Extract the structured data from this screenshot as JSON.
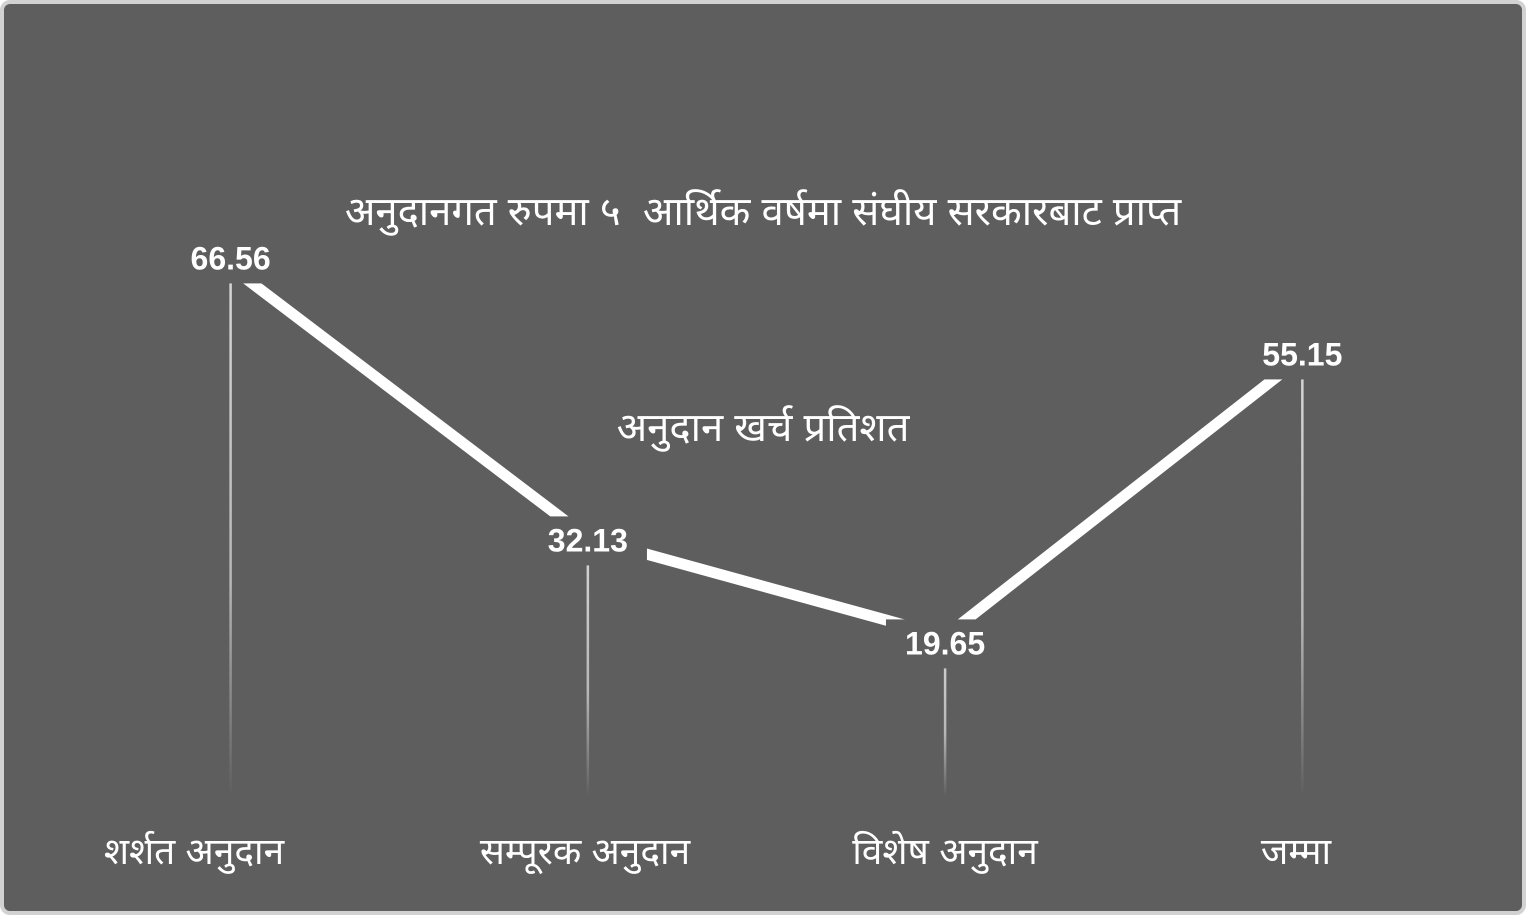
{
  "chart_data": {
    "type": "line",
    "title": "अनुदानगत रुपमा ५ आर्थिक वर्षमा संघीय सरकारबाट प्राप्त अनुदान खर्च प्रतिशत",
    "title_lines": [
      "अनुदानगत रुपमा ५  आर्थिक वर्षमा संघीय सरकारबाट प्राप्त",
      "अनुदान खर्च प्रतिशत"
    ],
    "categories": [
      "शर्शत अनुदान",
      "सम्पूरक अनुदान",
      "विशेष अनुदान",
      "जम्मा"
    ],
    "values": [
      66.56,
      32.13,
      19.65,
      55.15
    ],
    "value_labels": [
      "66.56",
      "32.13",
      "19.65",
      "55.15"
    ],
    "xlabel": "",
    "ylabel": "",
    "ylim": [
      0,
      76
    ],
    "axes_visible": false,
    "gridlines": false,
    "legend": false,
    "markers": false,
    "drop_lines": true,
    "colors": {
      "background": "#5e5e5e",
      "border": "#d2d2d2",
      "series_line": "#ffffff",
      "drop_line": "#ffffff",
      "text": "#ffffff"
    }
  }
}
